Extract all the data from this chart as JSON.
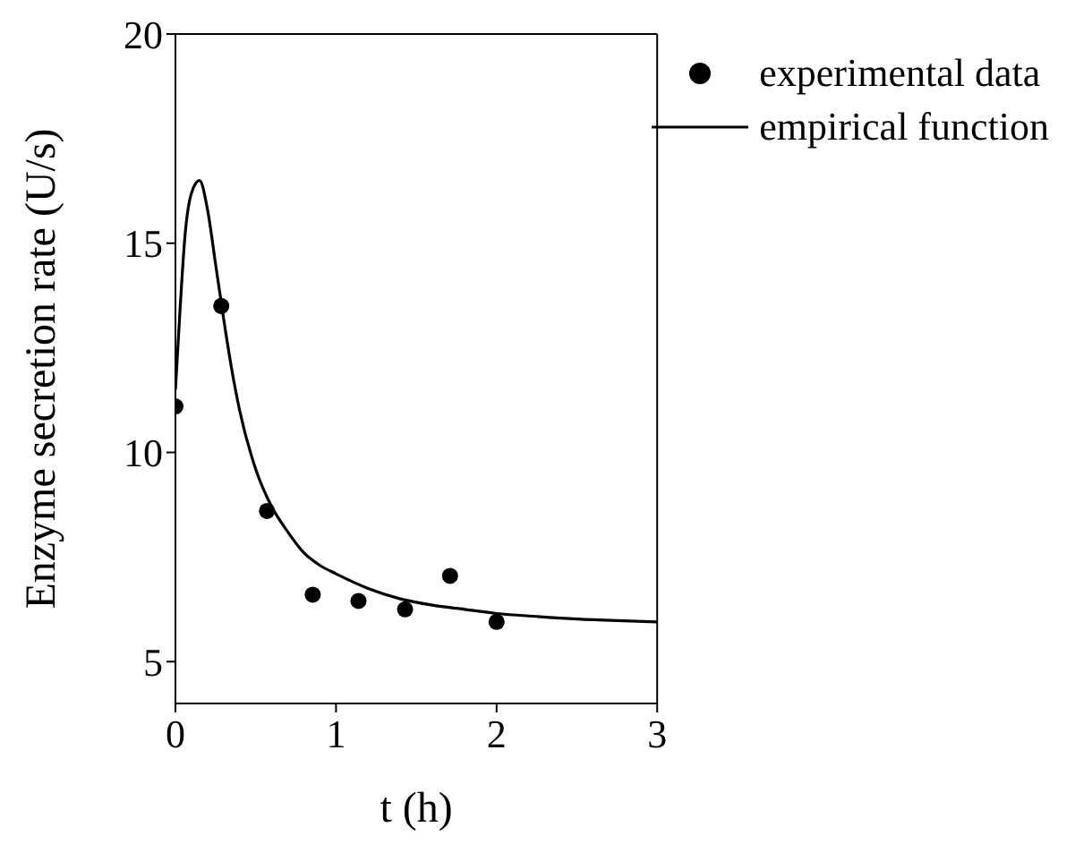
{
  "chart_data": {
    "type": "scatter",
    "xlabel": "t (h)",
    "ylabel": "Enzyme secretion rate (U/s)",
    "xlim": [
      0,
      3
    ],
    "xticks": [
      0,
      1,
      2,
      3
    ],
    "ylim": [
      4,
      20
    ],
    "yticks": [
      5,
      10,
      15,
      20
    ],
    "grid": false,
    "legend": "top right",
    "series": [
      {
        "name": "experimental data",
        "marker": "circle",
        "color": "#000000",
        "x": [
          0,
          0.285,
          0.57,
          0.855,
          1.14,
          1.43,
          1.71,
          2.0
        ],
        "values": [
          11.1,
          13.5,
          8.6,
          6.6,
          6.45,
          6.25,
          7.05,
          5.95
        ]
      },
      {
        "name": "empirical function",
        "type": "line",
        "marker": "none",
        "line_style": "solid",
        "color": "#000000",
        "x": [
          0,
          0.03,
          0.06,
          0.1,
          0.15,
          0.2,
          0.25,
          0.3,
          0.35,
          0.4,
          0.5,
          0.6,
          0.7,
          0.8,
          0.9,
          1.0,
          1.2,
          1.4,
          1.6,
          1.8,
          2.0,
          2.25,
          2.5,
          2.75,
          3.0
        ],
        "values": [
          11.5,
          13.5,
          15.2,
          16.2,
          16.5,
          15.8,
          14.5,
          13.2,
          12.0,
          11.0,
          9.6,
          8.7,
          8.1,
          7.6,
          7.3,
          7.1,
          6.75,
          6.5,
          6.35,
          6.25,
          6.15,
          6.08,
          6.02,
          5.98,
          5.95
        ]
      }
    ]
  }
}
